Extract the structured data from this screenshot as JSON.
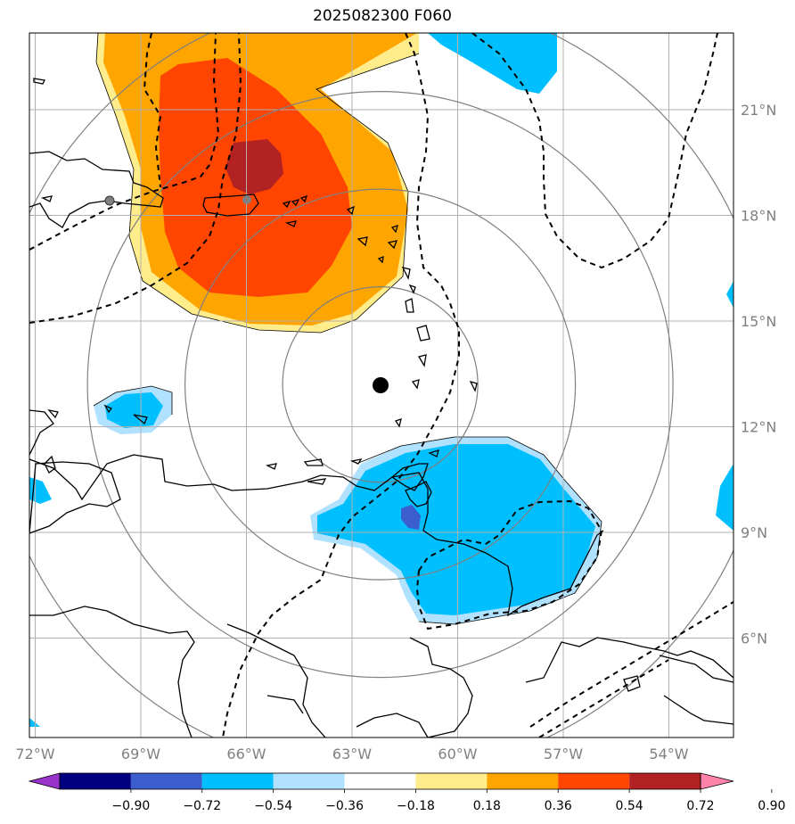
{
  "title": "2025082300 F060",
  "map": {
    "lon_labels": [
      "72°W",
      "69°W",
      "66°W",
      "63°W",
      "60°W",
      "57°W",
      "54°W"
    ],
    "lat_labels": [
      "21°N",
      "18°N",
      "15°N",
      "12°N",
      "9°N",
      "6°N"
    ],
    "lon_values": [
      -72,
      -69,
      -66,
      -63,
      -60,
      -57,
      -54
    ],
    "lat_values": [
      21,
      18,
      15,
      12,
      9,
      6
    ],
    "storm_center": {
      "lon": -62.2,
      "lat": 13.2
    },
    "range_ring_count": 4
  },
  "colorbar": {
    "labels": [
      "−0.90",
      "−0.72",
      "−0.54",
      "−0.36",
      "−0.18",
      "0.18",
      "0.36",
      "0.54",
      "0.72",
      "0.90"
    ],
    "levels": [
      -0.9,
      -0.72,
      -0.54,
      -0.36,
      -0.18,
      0.18,
      0.36,
      0.54,
      0.72,
      0.9
    ],
    "colors": [
      "#9933cc",
      "#000080",
      "#3a5fcd",
      "#00bfff",
      "#b0e2ff",
      "#ffffff",
      "#ffec8b",
      "#ffa500",
      "#ff4500",
      "#b22222",
      "#ff82ab"
    ]
  },
  "colors": {
    "positive_high": "#b22222",
    "positive_mid": "#ff4500",
    "positive_low": "#ffa500",
    "positive_faint": "#ffec8b",
    "negative_main": "#00bfff",
    "negative_faint": "#b0e2ff",
    "negative_strong": "#3a5fcd"
  }
}
